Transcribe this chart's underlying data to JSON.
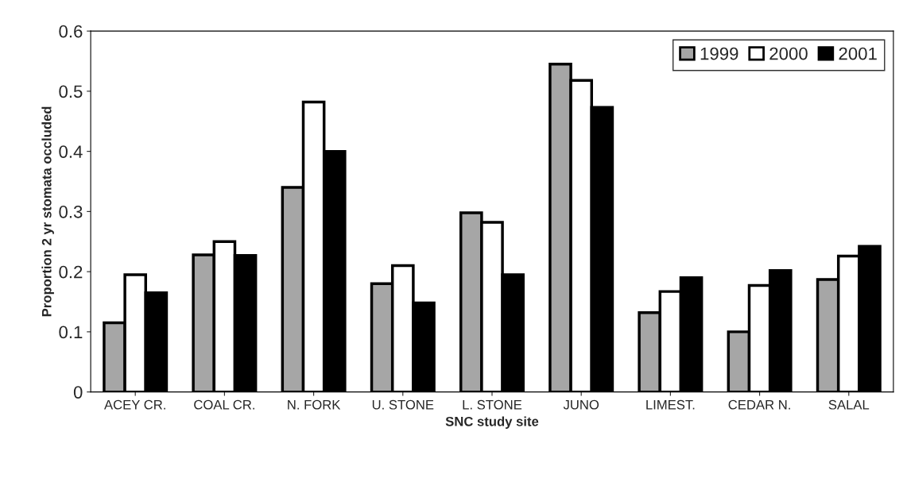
{
  "chart_data": {
    "type": "bar",
    "xlabel": "SNC study site",
    "ylabel": "Proportion 2 yr stomata occluded",
    "categories": [
      "ACEY CR.",
      "COAL CR.",
      "N. FORK",
      "U. STONE",
      "L. STONE",
      "JUNO",
      "LIMEST.",
      "CEDAR N.",
      "SALAL"
    ],
    "series": [
      {
        "name": "1999",
        "color": "#a6a6a6",
        "values": [
          0.115,
          0.228,
          0.34,
          0.18,
          0.298,
          0.545,
          0.132,
          0.1,
          0.187
        ]
      },
      {
        "name": "2000",
        "color": "#ffffff",
        "values": [
          0.195,
          0.25,
          0.482,
          0.21,
          0.282,
          0.518,
          0.167,
          0.177,
          0.226
        ]
      },
      {
        "name": "2001",
        "color": "#000000",
        "values": [
          0.165,
          0.227,
          0.4,
          0.148,
          0.195,
          0.473,
          0.19,
          0.202,
          0.242
        ]
      }
    ],
    "ylim": [
      0,
      0.6
    ],
    "yticks": [
      0,
      0.1,
      0.2,
      0.3,
      0.4,
      0.5,
      0.6
    ],
    "grid": false,
    "legend": "top right"
  }
}
